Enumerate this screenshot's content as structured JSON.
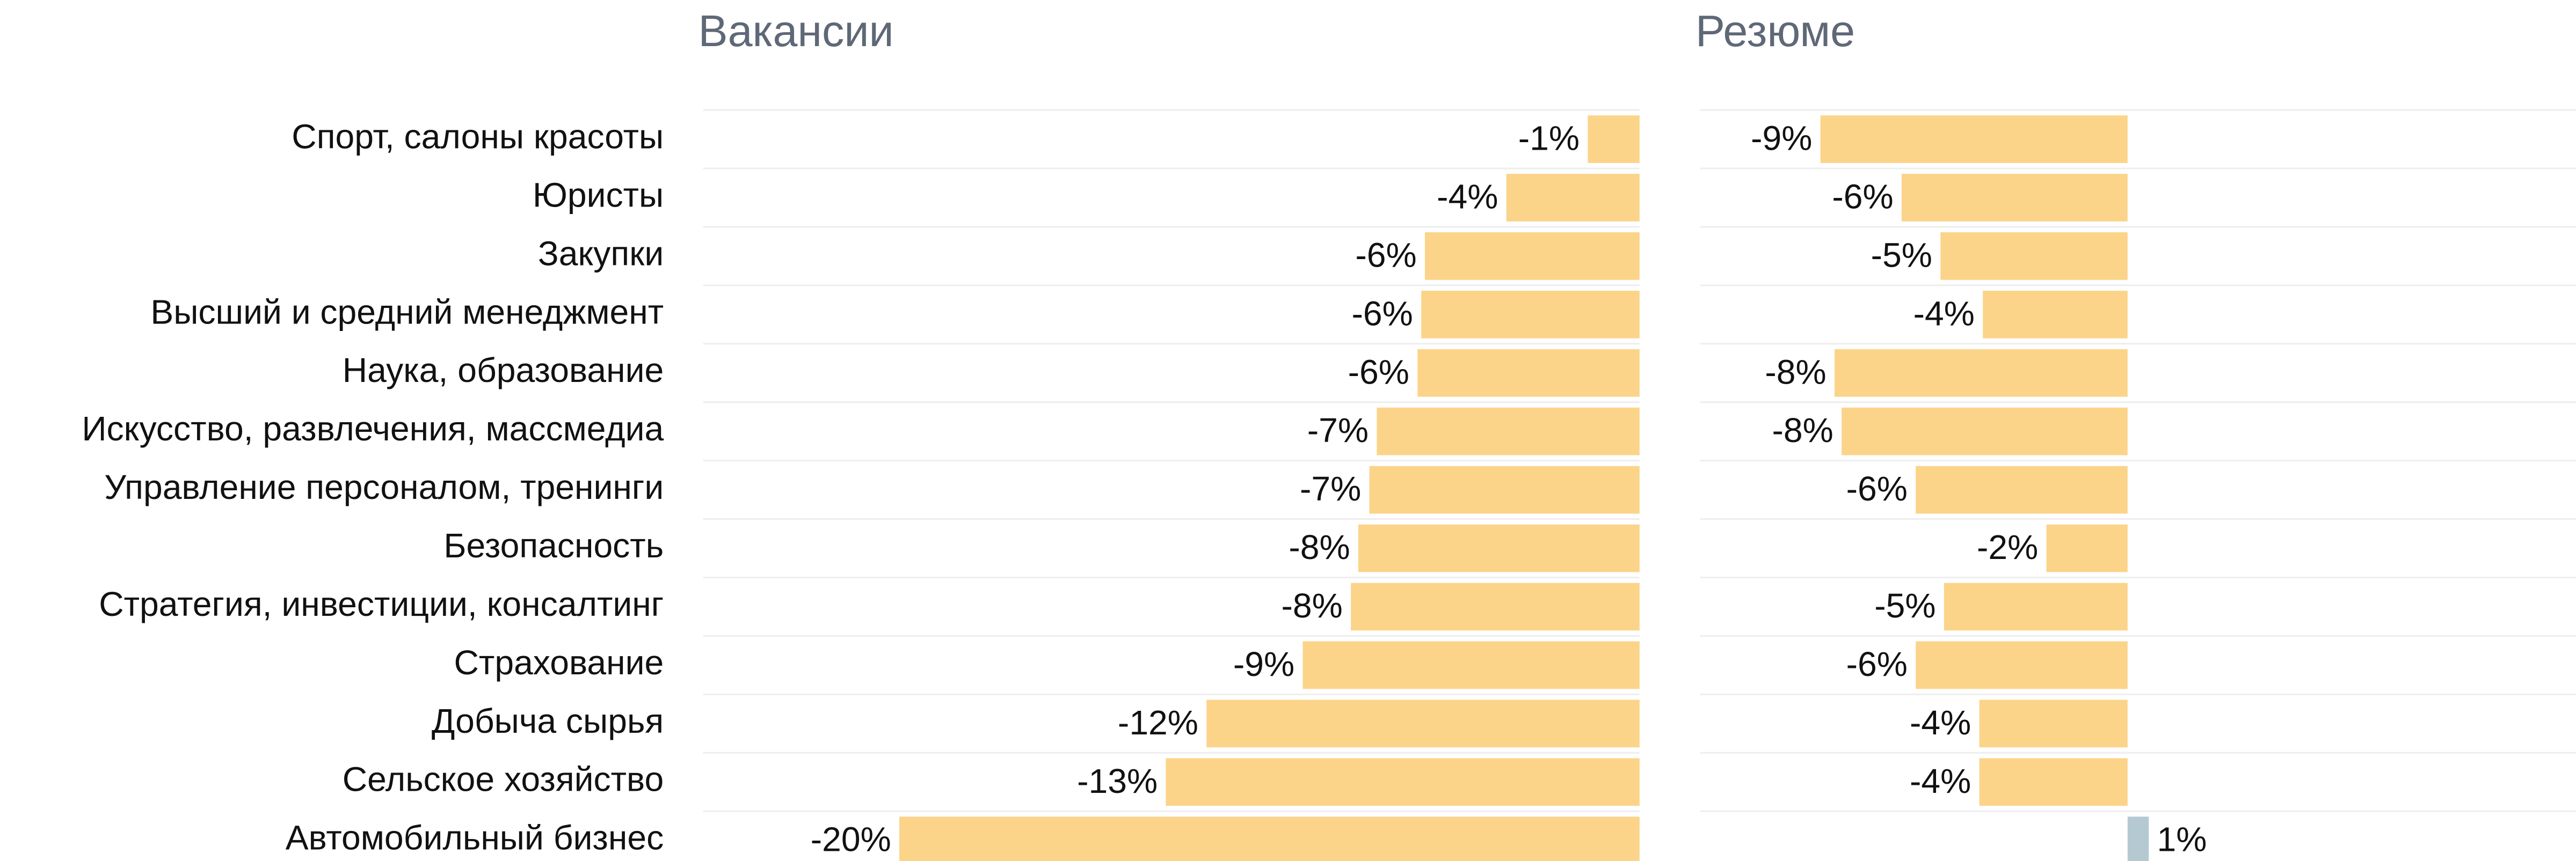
{
  "chart_data": {
    "type": "bar",
    "orientation": "horizontal",
    "categories": [
      "Спорт, салоны красоты",
      "Юристы",
      "Закупки",
      "Высший и средний менеджмент",
      "Наука, образование",
      "Искусство, развлечения, массмедиа",
      "Управление персоналом, тренинги",
      "Безопасность",
      "Стратегия, инвестиции, консалтинг",
      "Страхование",
      "Добыча сырья",
      "Сельское хозяйство",
      "Автомобильный бизнес"
    ],
    "series": [
      {
        "name": "Вакансии",
        "color": "#fbd48a",
        "positive_color": "#b5c9d3",
        "values": [
          -1.4,
          -3.6,
          -5.8,
          -5.9,
          -6.0,
          -7.1,
          -7.3,
          -7.6,
          -7.8,
          -9.1,
          -11.7,
          -12.8,
          -20.0
        ],
        "value_labels": [
          "-1%",
          "-4%",
          "-6%",
          "-6%",
          "-6%",
          "-7%",
          "-7%",
          "-8%",
          "-8%",
          "-9%",
          "-12%",
          "-13%",
          "-20%"
        ],
        "xlim": [
          -25.3,
          0
        ]
      },
      {
        "name": "Резюме",
        "color": "#fbd48a",
        "positive_color": "#b5c9d3",
        "values": [
          -8.7,
          -6.4,
          -5.3,
          -4.1,
          -8.3,
          -8.1,
          -6.0,
          -2.3,
          -5.2,
          -6.0,
          -4.2,
          -4.2,
          0.6
        ],
        "value_labels": [
          "-9%",
          "-6%",
          "-5%",
          "-4%",
          "-8%",
          "-8%",
          "-6%",
          "-2%",
          "-5%",
          "-6%",
          "-4%",
          "-4%",
          "1%"
        ],
        "xlim": [
          -12.1,
          12.7
        ]
      }
    ]
  }
}
